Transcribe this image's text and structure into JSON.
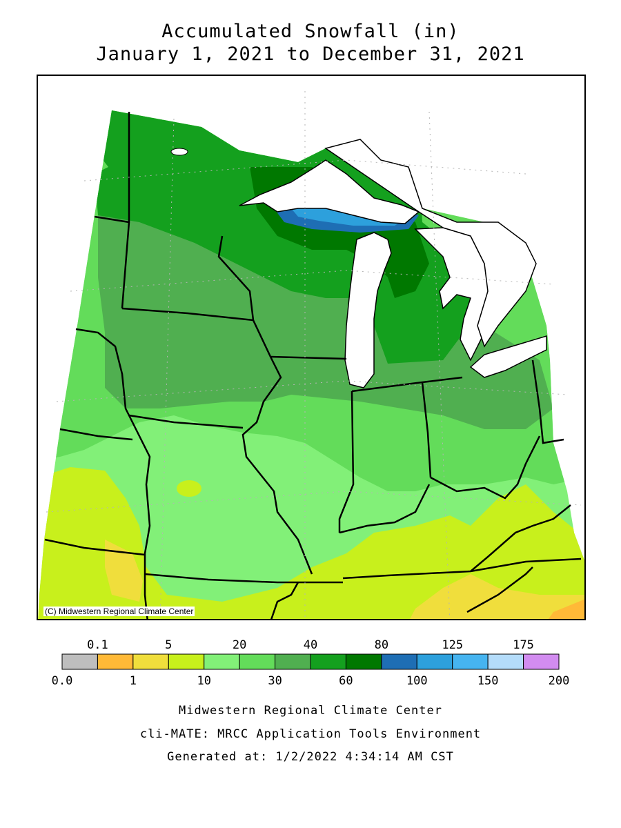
{
  "title": {
    "line1": "Accumulated Snowfall (in)",
    "line2": "January 1, 2021 to December 31, 2021"
  },
  "map": {
    "copyright": "(C) Midwestern Regional Climate Center"
  },
  "legend": {
    "top_labels": [
      "0.1",
      "5",
      "20",
      "40",
      "80",
      "125",
      "175"
    ],
    "bottom_labels": [
      "0.0",
      "1",
      "10",
      "30",
      "60",
      "100",
      "150",
      "200"
    ],
    "bins": [
      {
        "range": "0.0-0.1",
        "color": "#bebebe"
      },
      {
        "range": "0.1-1",
        "color": "#ffb937"
      },
      {
        "range": "1-5",
        "color": "#f0de3c"
      },
      {
        "range": "5-10",
        "color": "#c8f01c"
      },
      {
        "range": "10-20",
        "color": "#82f078"
      },
      {
        "range": "20-30",
        "color": "#63dc5a"
      },
      {
        "range": "30-40",
        "color": "#50af50"
      },
      {
        "range": "40-60",
        "color": "#14a01e"
      },
      {
        "range": "60-80",
        "color": "#007800"
      },
      {
        "range": "80-100",
        "color": "#1e6eb4"
      },
      {
        "range": "100-125",
        "color": "#2da0dc"
      },
      {
        "range": "125-150",
        "color": "#46b4f0"
      },
      {
        "range": "150-175",
        "color": "#b4dcfa"
      },
      {
        "range": "175-200",
        "color": "#d28cf0"
      }
    ]
  },
  "footer": {
    "line1": "Midwestern Regional Climate Center",
    "line2": "cli-MATE: MRCC Application Tools Environment",
    "line3": "Generated at: 1/2/2022 4:34:14 AM CST"
  }
}
